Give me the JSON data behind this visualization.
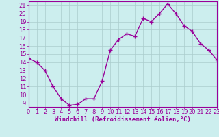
{
  "x": [
    0,
    1,
    2,
    3,
    4,
    5,
    6,
    7,
    8,
    9,
    10,
    11,
    12,
    13,
    14,
    15,
    16,
    17,
    18,
    19,
    20,
    21,
    22,
    23
  ],
  "y": [
    14.5,
    14.0,
    13.0,
    11.0,
    9.5,
    8.7,
    8.8,
    9.5,
    9.5,
    11.7,
    15.5,
    16.8,
    17.5,
    17.2,
    19.4,
    19.0,
    20.0,
    21.2,
    20.0,
    18.5,
    17.8,
    16.3,
    15.5,
    14.3
  ],
  "line_color": "#990099",
  "marker": "+",
  "markersize": 4,
  "linewidth": 1.0,
  "bg_color": "#cceeee",
  "grid_color": "#aacccc",
  "xlabel": "Windchill (Refroidissement éolien,°C)",
  "xlabel_color": "#990099",
  "tick_color": "#990099",
  "spine_color": "#990099",
  "ylim": [
    8.5,
    21.5
  ],
  "xlim": [
    0,
    23
  ],
  "yticks": [
    9,
    10,
    11,
    12,
    13,
    14,
    15,
    16,
    17,
    18,
    19,
    20,
    21
  ],
  "xticks": [
    0,
    1,
    2,
    3,
    4,
    5,
    6,
    7,
    8,
    9,
    10,
    11,
    12,
    13,
    14,
    15,
    16,
    17,
    18,
    19,
    20,
    21,
    22,
    23
  ],
  "figsize": [
    3.2,
    2.0
  ],
  "dpi": 100,
  "tick_fontsize": 6,
  "xlabel_fontsize": 6.5
}
